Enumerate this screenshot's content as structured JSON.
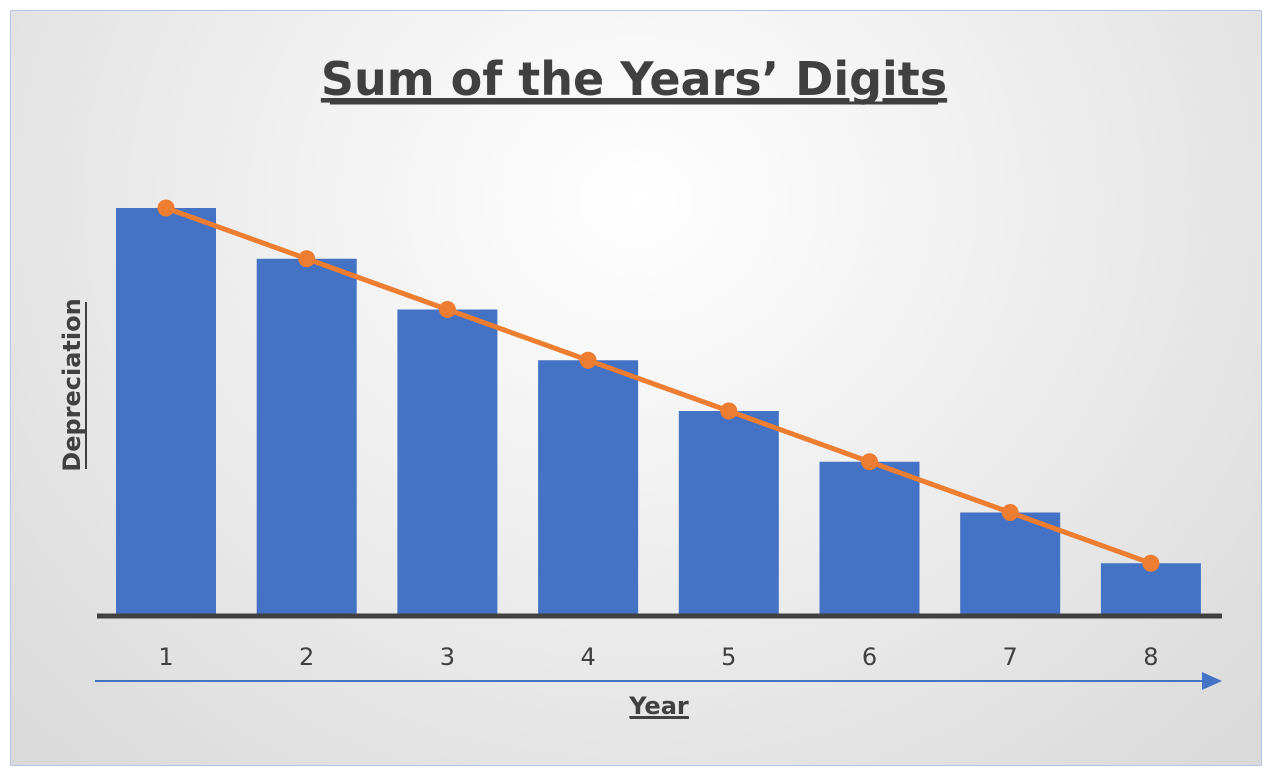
{
  "chart_data": {
    "type": "bar",
    "title": "Sum of the Years’ Digits",
    "xlabel": "Year",
    "ylabel": "Depreciation",
    "categories": [
      "1",
      "2",
      "3",
      "4",
      "5",
      "6",
      "7",
      "8"
    ],
    "series": [
      {
        "type": "bar",
        "values": [
          8,
          7,
          6,
          5,
          4,
          3,
          2,
          1
        ],
        "color": "#4472c4"
      },
      {
        "type": "line",
        "values": [
          8,
          7,
          6,
          5,
          4,
          3,
          2,
          1
        ],
        "color": "#ed7d31"
      }
    ],
    "ylim": [
      0,
      8
    ],
    "grid": false,
    "y_tick_labels": false,
    "x_axis_arrow_color": "#4472c4"
  }
}
